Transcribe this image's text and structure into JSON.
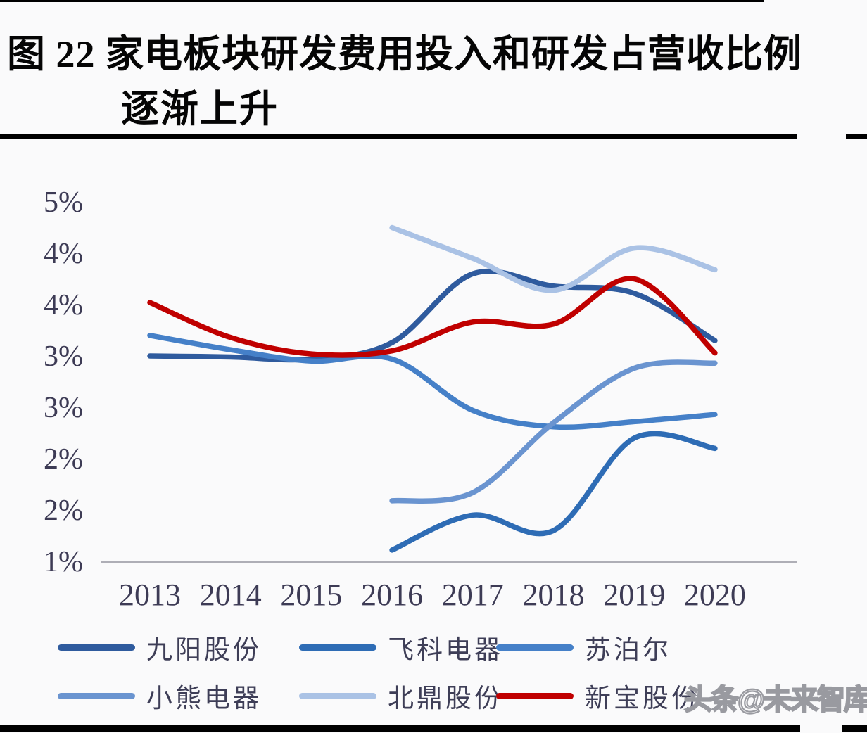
{
  "page": {
    "watermark": "头条@未来智库"
  },
  "header": {
    "figure_title_line1": "图 22 家电板块研发费用投入和研发占营收比例",
    "figure_title_line2": "逐渐上升"
  },
  "chart_data": {
    "type": "line",
    "title": "图 22 家电板块研发费用投入和研发占营收比例逐渐上升",
    "x": [
      "2013",
      "2014",
      "2015",
      "2016",
      "2017",
      "2018",
      "2019",
      "2020"
    ],
    "y_axis": {
      "min_percent": 1.5,
      "max_percent": 5.0,
      "step_percent": 0.5,
      "tick_labels_top_to_bottom": [
        "5%",
        "4%",
        "4%",
        "3%",
        "3%",
        "2%",
        "2%",
        "1%"
      ]
    },
    "grid": false,
    "legend_position": "bottom",
    "line_style": "smooth",
    "series": [
      {
        "id": "joyoung",
        "name": "九阳股份",
        "color": "#2f5b9e",
        "values": [
          3.5,
          3.49,
          3.47,
          3.63,
          4.3,
          4.18,
          4.11,
          3.65
        ]
      },
      {
        "id": "flyco",
        "name": "飞科电器",
        "color": "#2e6cb5",
        "values": [
          null,
          null,
          null,
          1.61,
          1.95,
          1.8,
          2.7,
          2.6
        ]
      },
      {
        "id": "supor",
        "name": "苏泊尔",
        "color": "#4580c8",
        "values": [
          3.7,
          3.56,
          3.45,
          3.47,
          2.97,
          2.81,
          2.86,
          2.93
        ]
      },
      {
        "id": "bear",
        "name": "小熊电器",
        "color": "#6a94d0",
        "values": [
          null,
          null,
          null,
          2.09,
          2.17,
          2.85,
          3.38,
          3.43
        ]
      },
      {
        "id": "buydeem",
        "name": "北鼎股份",
        "color": "#aac2e5",
        "values": [
          null,
          null,
          null,
          4.75,
          4.45,
          4.14,
          4.55,
          4.34
        ]
      },
      {
        "id": "xinbao",
        "name": "新宝股份",
        "color": "#c00000",
        "values": [
          4.02,
          3.68,
          3.52,
          3.55,
          3.83,
          3.81,
          4.25,
          3.53
        ]
      }
    ]
  }
}
